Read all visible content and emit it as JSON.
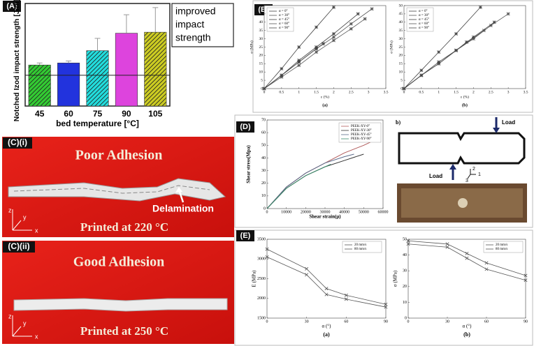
{
  "chart_data": [
    {
      "type": "bar",
      "panel_label": "(A)",
      "categories": [
        "45",
        "60",
        "75",
        "90",
        "105"
      ],
      "values": [
        40,
        42,
        54,
        71,
        72
      ],
      "errors": [
        2,
        2,
        12,
        18,
        24
      ],
      "colors": [
        "#33cc33",
        "#2233dd",
        "#22dddd",
        "#dd44dd",
        "#cccc22"
      ],
      "hatched": [
        true,
        false,
        true,
        false,
        true
      ],
      "ylim": [
        0,
        100
      ],
      "reference_line": 30,
      "x_label": "bed temperature [°C]",
      "y_label": "Notched Izod impact strength [J/m]",
      "annotation": [
        "improved",
        "impact",
        "strength"
      ]
    },
    {
      "type": "line",
      "panel_label": "(B)",
      "subtitle": "(a)",
      "x_label": "ε (%)",
      "y_label": "σ (MPa)",
      "xlim": [
        0,
        3.5
      ],
      "xticks": [
        0,
        0.5,
        1,
        1.5,
        2,
        2.5,
        3,
        3.5
      ],
      "ylim": [
        0,
        50
      ],
      "yticks": [
        0,
        5,
        10,
        15,
        20,
        25,
        30,
        35,
        40,
        45,
        50
      ],
      "marker": "star",
      "series": [
        {
          "name": "α = 0°",
          "color": "#444444",
          "x": [
            0,
            0.5,
            1,
            1.5,
            2.0
          ],
          "values": [
            0,
            12,
            25,
            37,
            49
          ]
        },
        {
          "name": "α = 30°",
          "color": "#555555",
          "x": [
            0,
            0.5,
            1,
            1.5,
            2,
            2.5,
            3.1
          ],
          "values": [
            0,
            8,
            16,
            24,
            31,
            39,
            48
          ]
        },
        {
          "name": "α = 45°",
          "color": "#444444",
          "x": [
            0,
            0.5,
            1,
            1.5,
            2,
            2.7
          ],
          "values": [
            0,
            8,
            17,
            25,
            33,
            45
          ]
        },
        {
          "name": "α = 60°",
          "color": "#555555",
          "x": [
            0,
            0.5,
            1,
            1.5,
            2,
            2.5,
            2.9
          ],
          "values": [
            0,
            7,
            14,
            22,
            29,
            36,
            42
          ]
        },
        {
          "name": "α = 90°",
          "color": "#444444",
          "x": [
            0,
            0.5,
            1,
            1.5,
            1.7
          ],
          "values": [
            0,
            8,
            16,
            24,
            27
          ]
        }
      ]
    },
    {
      "type": "line",
      "subtitle": "(b)",
      "x_label": "ε (%)",
      "y_label": "σ (MPa)",
      "xlim": [
        0,
        3.5
      ],
      "xticks": [
        0,
        0.5,
        1,
        1.5,
        2,
        2.5,
        3,
        3.5
      ],
      "ylim": [
        0,
        50
      ],
      "yticks": [
        0,
        5,
        10,
        15,
        20,
        25,
        30,
        35,
        40,
        45,
        50
      ],
      "marker": "star",
      "series": [
        {
          "name": "α = 0°",
          "color": "#444444",
          "x": [
            0,
            0.5,
            1,
            1.5,
            2.2
          ],
          "values": [
            0,
            11,
            22,
            33,
            49
          ]
        },
        {
          "name": "α = 30°",
          "color": "#555555",
          "x": [
            0,
            0.5,
            1,
            1.5,
            2,
            2.5,
            3
          ],
          "values": [
            0,
            8,
            15,
            23,
            30,
            38,
            45
          ]
        },
        {
          "name": "α = 45°",
          "color": "#444444",
          "x": [
            0,
            0.5,
            1,
            1.5,
            2,
            2.6
          ],
          "values": [
            0,
            8,
            15,
            23,
            31,
            40
          ]
        },
        {
          "name": "α = 60°",
          "color": "#555555",
          "x": [
            0,
            0.5,
            1,
            1.5,
            2.3
          ],
          "values": [
            0,
            8,
            15,
            23,
            35
          ]
        },
        {
          "name": "α = 90°",
          "color": "#444444",
          "x": [
            0,
            0.5,
            1,
            1.5,
            1.8
          ],
          "values": [
            0,
            8,
            16,
            23,
            28
          ]
        }
      ]
    },
    {
      "type": "line",
      "panel_label": "(D)",
      "x_label": "Shear strain(μ)",
      "y_label": "Shear stress(Mpa)",
      "xlim": [
        0,
        60000
      ],
      "xticks": [
        0,
        10000,
        20000,
        30000,
        40000,
        50000,
        60000
      ],
      "ylim": [
        0,
        70
      ],
      "yticks": [
        0,
        10,
        20,
        30,
        40,
        50,
        60,
        70
      ],
      "series": [
        {
          "name": "PEEK-XY-0°",
          "color": "#b05a5a",
          "x": [
            0,
            10000,
            20000,
            30000,
            40000,
            50000,
            57000
          ],
          "values": [
            0,
            17,
            28,
            36,
            44,
            50,
            55
          ]
        },
        {
          "name": "PEEK-XY-30°",
          "color": "#333333",
          "x": [
            0,
            10000,
            20000,
            30000,
            40000,
            50000
          ],
          "values": [
            0,
            16,
            26,
            33,
            38,
            43
          ]
        },
        {
          "name": "PEEK-XY-45°",
          "color": "#5a6a8a",
          "x": [
            0,
            10000,
            20000,
            30000,
            40000,
            45000
          ],
          "values": [
            0,
            17,
            28,
            36,
            41,
            43
          ]
        },
        {
          "name": "PEEK-XY-90°",
          "color": "#3a8a6a",
          "x": [
            0,
            10000,
            20000,
            30000,
            33000
          ],
          "values": [
            0,
            16,
            26,
            33,
            35
          ]
        }
      ]
    },
    {
      "type": "line",
      "panel_label": "(E)",
      "subtitle": "(a)",
      "x_label": "α (°)",
      "y_label": "E (MPa)",
      "x": [
        0,
        30,
        45,
        60,
        90
      ],
      "xlim": [
        0,
        90
      ],
      "xticks": [
        0,
        30,
        60,
        90
      ],
      "ylim": [
        1500,
        3500
      ],
      "yticks": [
        1500,
        2000,
        2500,
        3000,
        3500
      ],
      "marker": "cross",
      "series": [
        {
          "name": "20 mm/s",
          "color": "#555555",
          "values": [
            3250,
            2750,
            2250,
            2080,
            1850
          ]
        },
        {
          "name": "80 mm/s",
          "color": "#555555",
          "values": [
            3050,
            2600,
            2100,
            1980,
            1780
          ]
        }
      ]
    },
    {
      "type": "line",
      "subtitle": "(b)",
      "x_label": "α (°)",
      "y_label": "σ (MPa)",
      "x": [
        0,
        30,
        45,
        60,
        90
      ],
      "xlim": [
        0,
        90
      ],
      "xticks": [
        0,
        30,
        60,
        90
      ],
      "ylim": [
        0,
        50
      ],
      "yticks": [
        0,
        10,
        20,
        30,
        40,
        50
      ],
      "marker": "cross",
      "series": [
        {
          "name": "20 mm/s",
          "color": "#555555",
          "values": [
            49,
            47,
            41,
            35,
            27
          ]
        },
        {
          "name": "80 mm/s",
          "color": "#555555",
          "values": [
            47,
            45,
            38,
            31,
            24
          ]
        }
      ]
    }
  ],
  "photo_c1": {
    "label": "(C)(i)",
    "title": "Poor Adhesion",
    "annotation": "Delamination",
    "caption": "Printed at 220 °C",
    "axes": [
      "z",
      "y",
      "x"
    ]
  },
  "photo_c2": {
    "label": "(C)(ii)",
    "title": "Good Adhesion",
    "caption": "Printed at 250 °C",
    "axes": [
      "z",
      "y",
      "x"
    ]
  },
  "diagram": {
    "label": "b)",
    "loads": [
      "Load",
      "Load"
    ],
    "axes": [
      "2",
      "1",
      "3"
    ]
  }
}
